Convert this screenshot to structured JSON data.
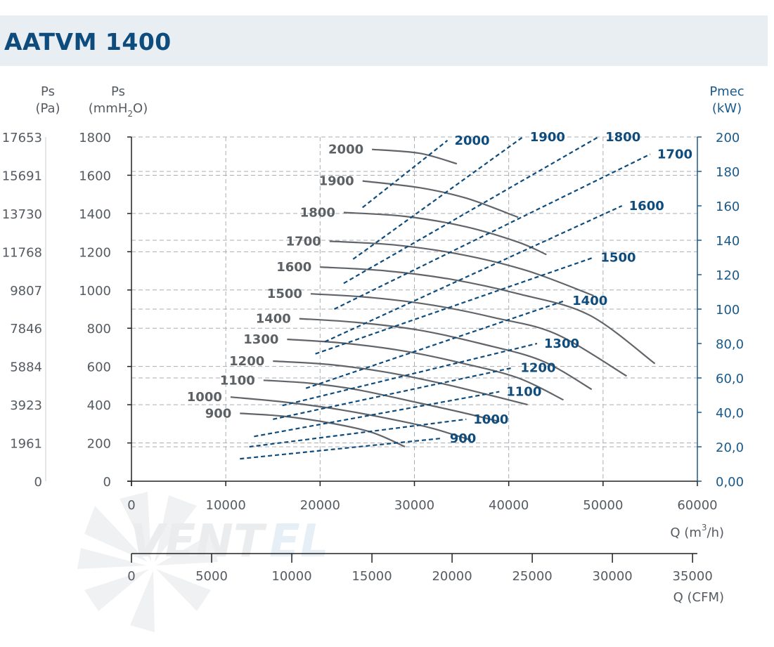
{
  "header": {
    "title": "AATVM 1400"
  },
  "chart_data": {
    "type": "line",
    "title": "AATVM 1400",
    "axes": {
      "y_pa": {
        "label": "Ps",
        "unit": "(Pa)",
        "ticks": [
          "17653",
          "15691",
          "13730",
          "11768",
          "9807",
          "7846",
          "5884",
          "3923",
          "1961",
          "0"
        ]
      },
      "y_mmh2o": {
        "label": "Ps",
        "unit_prefix": "(mmH",
        "unit_sub": "2",
        "unit_suffix": "O)",
        "ticks": [
          1800,
          1600,
          1400,
          1200,
          1000,
          800,
          600,
          400,
          200,
          0
        ],
        "ylim": [
          0,
          1800
        ]
      },
      "y_pmec": {
        "label": "Pmec",
        "unit": "(kW)",
        "ticks": [
          "200",
          "180",
          "160",
          "140",
          "120",
          "100",
          "80,0",
          "60,0",
          "40,0",
          "20,0",
          "0,00"
        ],
        "ylim": [
          0,
          200
        ]
      },
      "x_m3h": {
        "label_prefix": "Q (m",
        "label_sup": "3",
        "label_suffix": "/h)",
        "ticks": [
          0,
          10000,
          20000,
          30000,
          40000,
          50000,
          60000
        ],
        "xlim": [
          0,
          60000
        ]
      },
      "x_cfm": {
        "label": "Q (CFM)",
        "ticks": [
          0,
          5000,
          10000,
          15000,
          20000,
          25000,
          30000,
          35000
        ]
      }
    },
    "grid": true,
    "pressure_curves": [
      {
        "name": "900",
        "points": [
          [
            11500,
            355
          ],
          [
            16000,
            340
          ],
          [
            21000,
            305
          ],
          [
            25500,
            255
          ],
          [
            29000,
            180
          ]
        ]
      },
      {
        "name": "1000",
        "points": [
          [
            10500,
            440
          ],
          [
            16000,
            415
          ],
          [
            22000,
            375
          ],
          [
            28500,
            315
          ],
          [
            32000,
            275
          ],
          [
            36000,
            215
          ]
        ]
      },
      {
        "name": "1100",
        "points": [
          [
            14000,
            528
          ],
          [
            19000,
            512
          ],
          [
            24000,
            478
          ],
          [
            29500,
            420
          ],
          [
            35000,
            360
          ],
          [
            39000,
            312
          ]
        ]
      },
      {
        "name": "1200",
        "points": [
          [
            15000,
            628
          ],
          [
            21000,
            610
          ],
          [
            27000,
            570
          ],
          [
            33000,
            510
          ],
          [
            38000,
            450
          ],
          [
            42000,
            400
          ]
        ]
      },
      {
        "name": "1300",
        "points": [
          [
            16500,
            742
          ],
          [
            22500,
            722
          ],
          [
            29000,
            680
          ],
          [
            35000,
            618
          ],
          [
            41000,
            540
          ],
          [
            45800,
            425
          ]
        ]
      },
      {
        "name": "1400",
        "points": [
          [
            17800,
            850
          ],
          [
            24000,
            830
          ],
          [
            30500,
            790
          ],
          [
            37000,
            720
          ],
          [
            43500,
            630
          ],
          [
            48800,
            480
          ]
        ]
      },
      {
        "name": "1500",
        "points": [
          [
            19000,
            980
          ],
          [
            25500,
            960
          ],
          [
            32000,
            920
          ],
          [
            38500,
            855
          ],
          [
            45000,
            770
          ],
          [
            52500,
            550
          ]
        ]
      },
      {
        "name": "1600",
        "points": [
          [
            20000,
            1120
          ],
          [
            27000,
            1100
          ],
          [
            34000,
            1055
          ],
          [
            41000,
            980
          ],
          [
            48500,
            870
          ],
          [
            55500,
            615
          ]
        ]
      },
      {
        "name": "1700",
        "points": [
          [
            21000,
            1255
          ],
          [
            28000,
            1235
          ],
          [
            35000,
            1185
          ],
          [
            42000,
            1100
          ],
          [
            49000,
            970
          ]
        ]
      },
      {
        "name": "1800",
        "points": [
          [
            22500,
            1405
          ],
          [
            29000,
            1385
          ],
          [
            35500,
            1330
          ],
          [
            41000,
            1250
          ],
          [
            44000,
            1185
          ]
        ]
      },
      {
        "name": "1900",
        "points": [
          [
            24500,
            1570
          ],
          [
            30500,
            1535
          ],
          [
            35500,
            1480
          ],
          [
            41000,
            1380
          ]
        ]
      },
      {
        "name": "2000",
        "points": [
          [
            25500,
            1735
          ],
          [
            30500,
            1715
          ],
          [
            34500,
            1660
          ]
        ]
      }
    ],
    "power_curves": [
      {
        "name": "900",
        "points": [
          [
            11500,
            13
          ],
          [
            33000,
            25
          ]
        ]
      },
      {
        "name": "1000",
        "points": [
          [
            12500,
            20
          ],
          [
            35500,
            36
          ]
        ]
      },
      {
        "name": "1100",
        "points": [
          [
            13000,
            26
          ],
          [
            39000,
            52
          ]
        ]
      },
      {
        "name": "1200",
        "points": [
          [
            15000,
            36
          ],
          [
            40500,
            66
          ]
        ]
      },
      {
        "name": "1300",
        "points": [
          [
            16000,
            44
          ],
          [
            43000,
            80
          ]
        ]
      },
      {
        "name": "1400",
        "points": [
          [
            18500,
            54
          ],
          [
            46000,
            105
          ]
        ]
      },
      {
        "name": "1500",
        "points": [
          [
            19500,
            74
          ],
          [
            49000,
            130
          ]
        ]
      },
      {
        "name": "1600",
        "points": [
          [
            20500,
            81
          ],
          [
            52000,
            160
          ]
        ]
      },
      {
        "name": "1700",
        "points": [
          [
            21500,
            100
          ],
          [
            55000,
            190
          ]
        ]
      },
      {
        "name": "1800",
        "points": [
          [
            22500,
            115
          ],
          [
            49500,
            200
          ]
        ]
      },
      {
        "name": "1900",
        "points": [
          [
            23500,
            129
          ],
          [
            41500,
            200
          ]
        ]
      },
      {
        "name": "2000",
        "points": [
          [
            24500,
            159
          ],
          [
            33500,
            198
          ]
        ]
      }
    ]
  }
}
